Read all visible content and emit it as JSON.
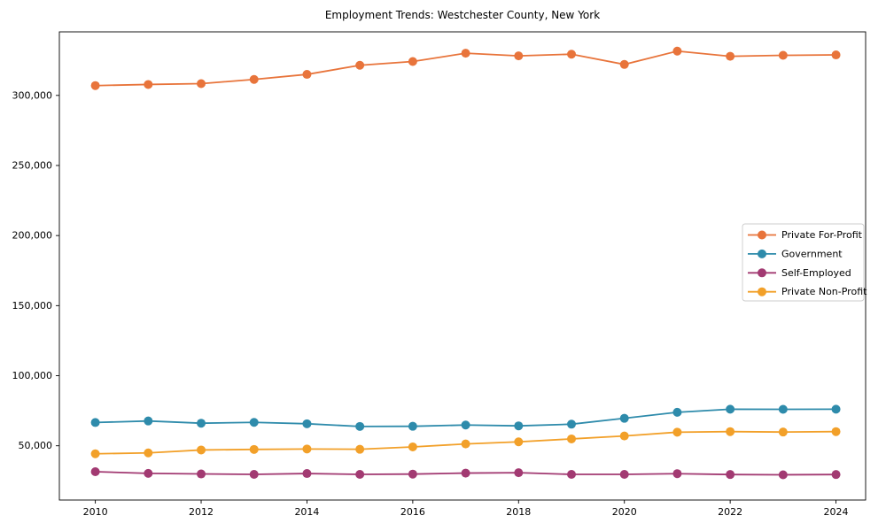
{
  "chart_data": {
    "type": "line",
    "title": "Employment Trends: Westchester County, New York",
    "xlabel": "",
    "ylabel": "",
    "x": [
      2010,
      2011,
      2012,
      2013,
      2014,
      2015,
      2016,
      2017,
      2018,
      2019,
      2020,
      2021,
      2022,
      2023,
      2024
    ],
    "series": [
      {
        "name": "Private For-Profit",
        "color": "#e8743b",
        "values": [
          307000,
          307800,
          308400,
          311400,
          315000,
          321500,
          324200,
          330100,
          328200,
          329400,
          322100,
          331600,
          327900,
          328600,
          328900
        ]
      },
      {
        "name": "Government",
        "color": "#2e8bab",
        "values": [
          66600,
          67700,
          66100,
          66700,
          65700,
          63800,
          63900,
          64800,
          64200,
          65400,
          69600,
          73900,
          76100,
          76000,
          76100
        ]
      },
      {
        "name": "Self-Employed",
        "color": "#a23a72",
        "values": [
          31500,
          30300,
          29900,
          29600,
          30200,
          29600,
          29800,
          30500,
          30800,
          29600,
          29600,
          30100,
          29500,
          29300,
          29500
        ]
      },
      {
        "name": "Private Non-Profit",
        "color": "#f2a029",
        "values": [
          44300,
          44900,
          47000,
          47400,
          47700,
          47500,
          49200,
          51300,
          52800,
          54900,
          57000,
          59700,
          60100,
          59800,
          60100
        ]
      }
    ],
    "x_tick_values": [
      2010,
      2012,
      2014,
      2016,
      2018,
      2020,
      2022,
      2024
    ],
    "x_tick_labels": [
      "2010",
      "2012",
      "2014",
      "2016",
      "2018",
      "2020",
      "2022",
      "2024"
    ],
    "y_tick_values": [
      50000,
      100000,
      150000,
      200000,
      250000,
      300000
    ],
    "y_tick_labels": [
      "50,000",
      "100,000",
      "150,000",
      "200,000",
      "250,000",
      "300,000"
    ],
    "xlim": [
      2009.32,
      2024.56
    ],
    "ylim": [
      11290,
      345340
    ],
    "grid": false,
    "legend_position": "center right",
    "legend_entries": [
      "Private For-Profit",
      "Government",
      "Self-Employed",
      "Private Non-Profit"
    ]
  }
}
